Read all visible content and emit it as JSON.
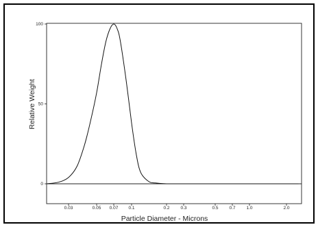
{
  "chart_data": {
    "type": "line",
    "title": "",
    "xlabel": "Particle Diameter  -  Microns",
    "ylabel": "Relative Weight",
    "x_scale": "log",
    "xlim": [
      0.02,
      2.5
    ],
    "ylim": [
      0,
      100
    ],
    "x_ticks": [
      {
        "value": 0.03,
        "label": "0.03"
      },
      {
        "value": 0.05,
        "label": "0.05"
      },
      {
        "value": 0.07,
        "label": "0.07"
      },
      {
        "value": 0.1,
        "label": "0.1"
      },
      {
        "value": 0.2,
        "label": "0.2"
      },
      {
        "value": 0.3,
        "label": "0.3"
      },
      {
        "value": 0.5,
        "label": "0.5"
      },
      {
        "value": 0.7,
        "label": "0.7"
      },
      {
        "value": 1.0,
        "label": "1.0"
      },
      {
        "value": 2.0,
        "label": "2.0"
      }
    ],
    "y_ticks": [
      {
        "value": 0,
        "label": "0"
      },
      {
        "value": 50,
        "label": "50"
      },
      {
        "value": 100,
        "label": "100"
      }
    ],
    "grid": false,
    "legend": "none",
    "series": [
      {
        "x": [
          0.02,
          0.025,
          0.03,
          0.035,
          0.04,
          0.045,
          0.05,
          0.055,
          0.06,
          0.065,
          0.07,
          0.075,
          0.08,
          0.09,
          0.1,
          0.11,
          0.12,
          0.14,
          0.16,
          0.2,
          0.3,
          0.5,
          1.0,
          2.5
        ],
        "y": [
          0,
          1,
          4,
          11,
          24,
          40,
          57,
          75,
          89,
          97,
          100,
          97,
          89,
          64,
          38,
          18,
          7,
          1.5,
          0.5,
          0,
          0,
          0,
          0,
          0
        ]
      }
    ]
  }
}
